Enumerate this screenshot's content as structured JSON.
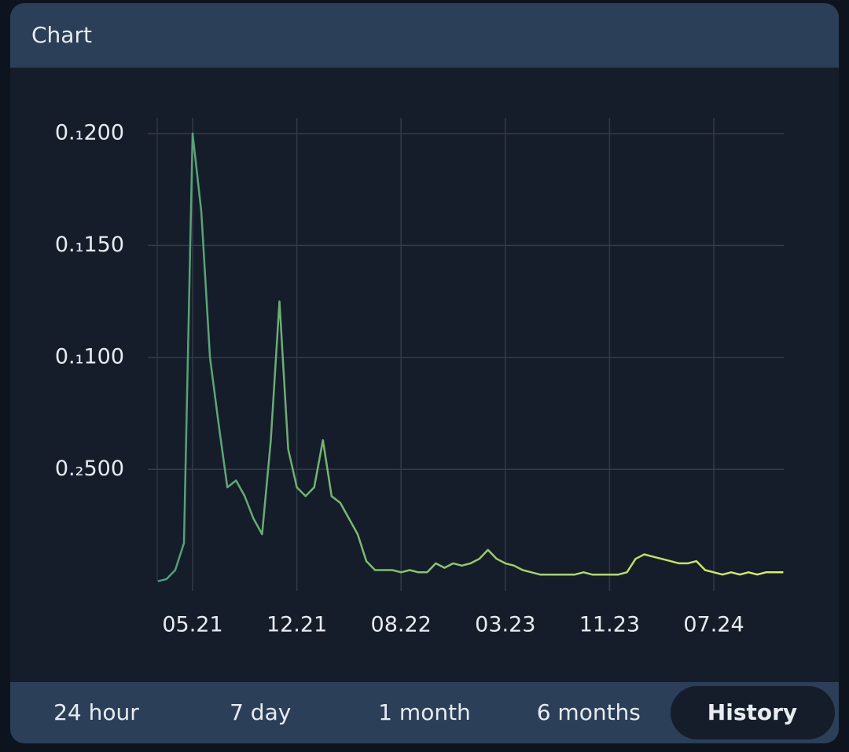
{
  "header": {
    "title": "Chart"
  },
  "tabs": {
    "labels": [
      "24 hour",
      "7 day",
      "1 month",
      "6 months",
      "History"
    ],
    "active": 4
  },
  "chart_data": {
    "type": "line",
    "categories": [
      null,
      null,
      null,
      null,
      "05.21",
      null,
      null,
      null,
      null,
      null,
      null,
      null,
      null,
      null,
      null,
      null,
      "12.21",
      null,
      null,
      null,
      null,
      null,
      null,
      null,
      null,
      null,
      null,
      null,
      "08.22",
      null,
      null,
      null,
      null,
      null,
      null,
      null,
      null,
      null,
      null,
      null,
      "03.23",
      null,
      null,
      null,
      null,
      null,
      null,
      null,
      null,
      null,
      null,
      null,
      "11.23",
      null,
      null,
      null,
      null,
      null,
      null,
      null,
      null,
      null,
      null,
      null,
      "07.24",
      null,
      null,
      null,
      null,
      null,
      null,
      null,
      null
    ],
    "series": [
      {
        "gradient": [
          "#4e9f78",
          "#dcf35c"
        ],
        "values": [
          0.0,
          0.0001,
          0.0005,
          0.0017,
          0.02,
          0.0165,
          0.01,
          0.007,
          0.0042,
          0.0045,
          0.0038,
          0.0028,
          0.0021,
          0.0063,
          0.0125,
          0.0059,
          0.0042,
          0.0038,
          0.0042,
          0.0063,
          0.0038,
          0.0035,
          0.0028,
          0.0021,
          0.0009,
          0.0005,
          0.0005,
          0.0005,
          0.0004,
          0.0005,
          0.0004,
          0.0004,
          0.0008,
          0.0006,
          0.0008,
          0.0007,
          0.0008,
          0.001,
          0.0014,
          0.001,
          0.0008,
          0.0007,
          0.0005,
          0.0004,
          0.0003,
          0.0003,
          0.0003,
          0.0003,
          0.0003,
          0.0004,
          0.0003,
          0.0003,
          0.0003,
          0.0003,
          0.0004,
          0.001,
          0.0012,
          0.0011,
          0.001,
          0.0009,
          0.0008,
          0.0008,
          0.0009,
          0.0005,
          0.0004,
          0.0003,
          0.0004,
          0.0003,
          0.0004,
          0.0003,
          0.0004,
          0.0004,
          0.0004
        ]
      }
    ],
    "ylim": [
      0,
      0.0207
    ],
    "yticks": [
      {
        "value": 0.005,
        "label": "0.₂500"
      },
      {
        "value": 0.01,
        "label": "0.₁100"
      },
      {
        "value": 0.015,
        "label": "0.₁150"
      },
      {
        "value": 0.02,
        "label": "0.₁200"
      }
    ],
    "grid": true
  }
}
